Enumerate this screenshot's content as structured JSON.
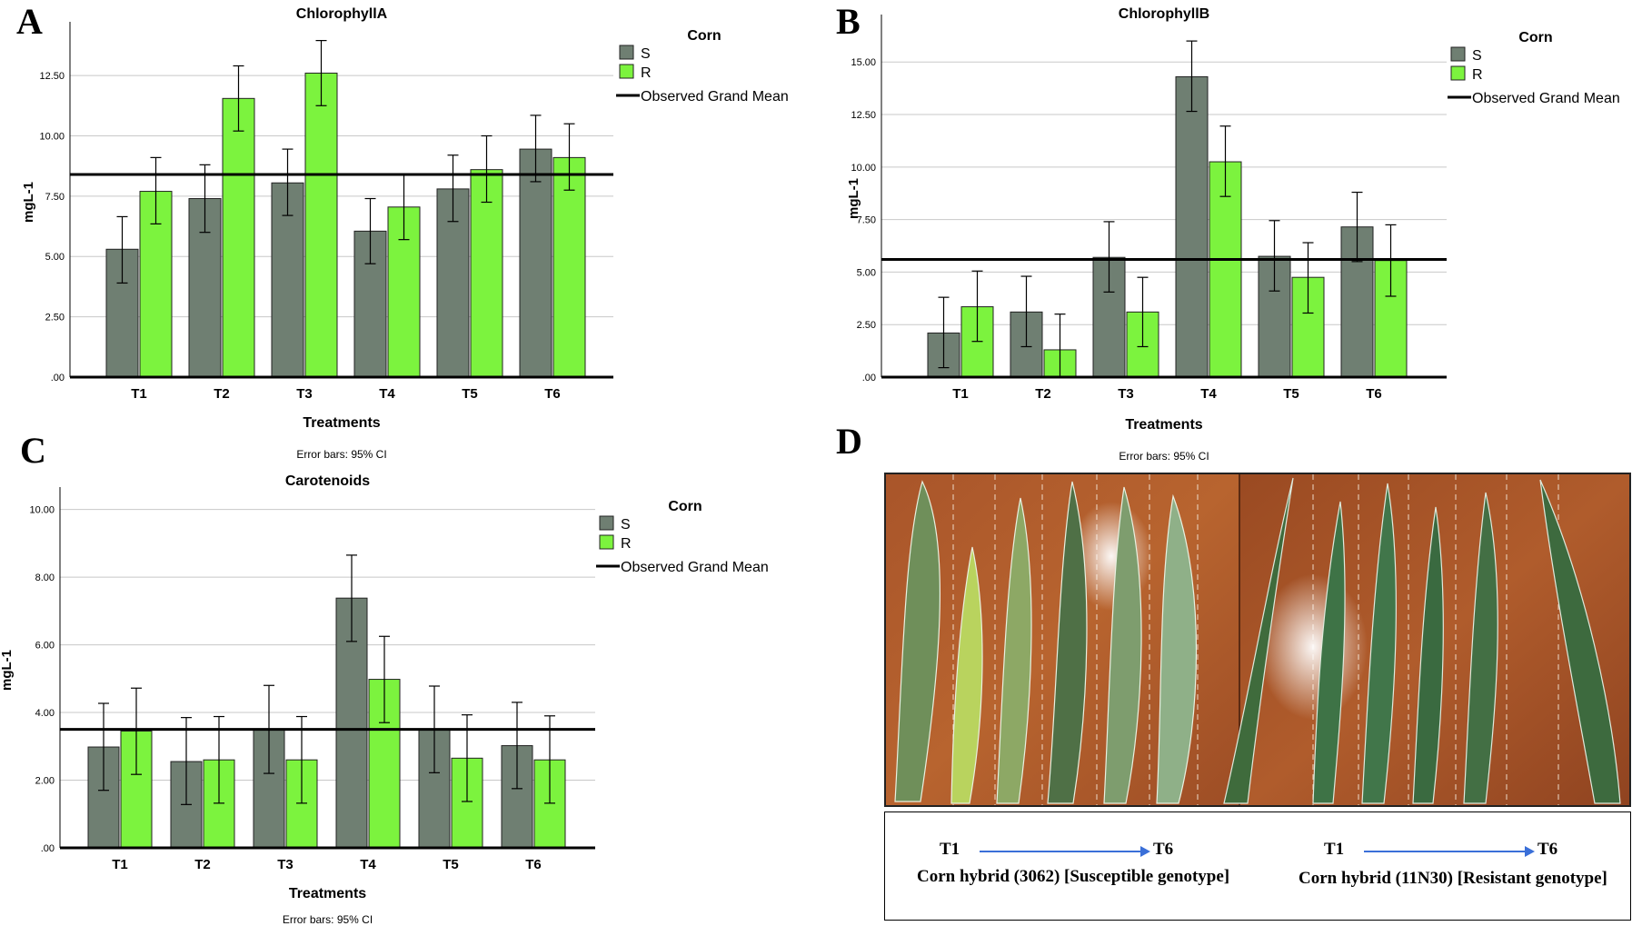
{
  "panel_labels": {
    "a": "A",
    "b": "B",
    "c": "C",
    "d": "D"
  },
  "colors": {
    "S": "#6f7f72",
    "R": "#7cf33e",
    "mean_line": "#000000",
    "grid": "#c8c8c8",
    "error_bar": "#000000"
  },
  "chart_data": [
    {
      "id": "A",
      "type": "bar",
      "title": "ChlorophyllA",
      "xlabel": "Treatments",
      "ylabel": "mgL-1",
      "categories": [
        "T1",
        "T2",
        "T3",
        "T4",
        "T5",
        "T6"
      ],
      "ylim": [
        0,
        14.5
      ],
      "yticks": [
        0,
        2.5,
        5.0,
        7.5,
        10.0,
        12.5
      ],
      "ytick_labels": [
        ".00",
        "2.50",
        "5.00",
        "7.50",
        "10.00",
        "12.50"
      ],
      "grand_mean": 8.4,
      "legend_title": "Corn",
      "legend_mean_label": "Observed Grand Mean",
      "footnote": "Error bars: 95% CI",
      "series": [
        {
          "name": "S",
          "values": [
            5.3,
            7.4,
            8.05,
            6.05,
            7.8,
            9.45
          ],
          "ci_low": [
            3.9,
            6.0,
            6.7,
            4.7,
            6.45,
            8.1
          ],
          "ci_high": [
            6.65,
            8.8,
            9.45,
            7.4,
            9.2,
            10.85
          ]
        },
        {
          "name": "R",
          "values": [
            7.7,
            11.55,
            12.6,
            7.05,
            8.6,
            9.1
          ],
          "ci_low": [
            6.35,
            10.2,
            11.25,
            5.7,
            7.25,
            7.75
          ],
          "ci_high": [
            9.1,
            12.9,
            13.95,
            8.4,
            10.0,
            10.5
          ]
        }
      ]
    },
    {
      "id": "B",
      "type": "bar",
      "title": "ChlorophyllB",
      "xlabel": "Treatments",
      "ylabel": "mgL-1",
      "categories": [
        "T1",
        "T2",
        "T3",
        "T4",
        "T5",
        "T6"
      ],
      "ylim": [
        0,
        17
      ],
      "yticks": [
        0,
        2.5,
        5.0,
        7.5,
        10.0,
        12.5,
        15.0
      ],
      "ytick_labels": [
        ".00",
        "2.50",
        "5.00",
        "7.50",
        "10.00",
        "12.50",
        "15.00"
      ],
      "grand_mean": 5.6,
      "legend_title": "Corn",
      "legend_mean_label": "Observed Grand Mean",
      "footnote": "Error bars: 95% CI",
      "series": [
        {
          "name": "S",
          "values": [
            2.1,
            3.1,
            5.7,
            14.3,
            5.75,
            7.15
          ],
          "ci_low": [
            0.45,
            1.45,
            4.05,
            12.65,
            4.1,
            5.5
          ],
          "ci_high": [
            3.8,
            4.8,
            7.4,
            16.0,
            7.45,
            8.8
          ]
        },
        {
          "name": "R",
          "values": [
            3.35,
            1.3,
            3.1,
            10.25,
            4.75,
            5.55
          ],
          "ci_low": [
            1.7,
            -0.35,
            1.45,
            8.6,
            3.05,
            3.85
          ],
          "ci_high": [
            5.05,
            3.0,
            4.75,
            11.95,
            6.4,
            7.25
          ]
        }
      ]
    },
    {
      "id": "C",
      "type": "bar",
      "title": "Carotenoids",
      "xlabel": "Treatments",
      "ylabel": "mgL-1",
      "categories": [
        "T1",
        "T2",
        "T3",
        "T4",
        "T5",
        "T6"
      ],
      "ylim": [
        0,
        10.5
      ],
      "yticks": [
        0,
        2.0,
        4.0,
        6.0,
        8.0,
        10.0
      ],
      "ytick_labels": [
        ".00",
        "2.00",
        "4.00",
        "6.00",
        "8.00",
        "10.00"
      ],
      "grand_mean": 3.5,
      "legend_title": "Corn",
      "legend_mean_label": "Observed Grand Mean",
      "footnote": "Error bars: 95% CI",
      "series": [
        {
          "name": "S",
          "values": [
            2.98,
            2.55,
            3.5,
            7.38,
            3.5,
            3.02
          ],
          "ci_low": [
            1.7,
            1.28,
            2.2,
            6.1,
            2.22,
            1.75
          ],
          "ci_high": [
            4.27,
            3.85,
            4.8,
            8.65,
            4.78,
            4.3
          ]
        },
        {
          "name": "R",
          "values": [
            3.45,
            2.6,
            2.6,
            4.98,
            2.65,
            2.6
          ],
          "ci_low": [
            2.17,
            1.32,
            1.32,
            3.7,
            1.37,
            1.32
          ],
          "ci_high": [
            4.72,
            3.88,
            3.88,
            6.25,
            3.93,
            3.9
          ]
        }
      ]
    }
  ],
  "photo": {
    "captions": [
      {
        "start": "T1",
        "end": "T6",
        "label": "Corn hybrid (3062) [Susceptible genotype]"
      },
      {
        "start": "T1",
        "end": "T6",
        "label": "Corn hybrid (11N30) [Resistant genotype]"
      }
    ]
  }
}
